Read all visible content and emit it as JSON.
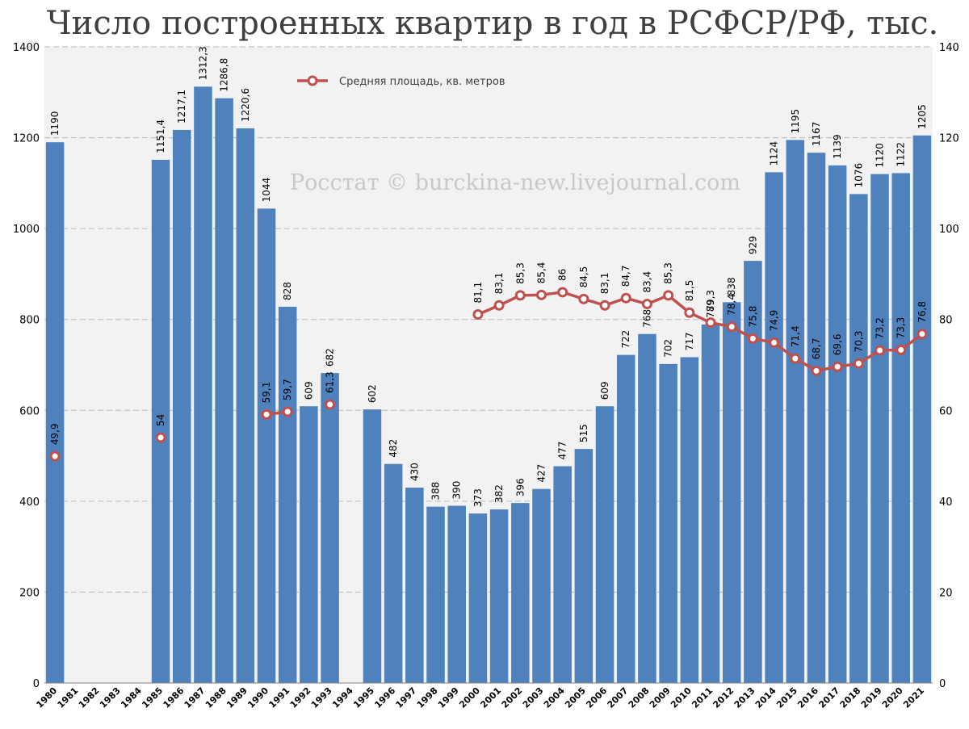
{
  "chart_data": {
    "type": "bar",
    "title": "Число построенных квартир в год в РСФСР/РФ, тыс.",
    "watermark": "Росстат © burckina-new.livejournal.com",
    "categories": [
      "1980",
      "1981",
      "1982",
      "1983",
      "1984",
      "1985",
      "1986",
      "1987",
      "1988",
      "1989",
      "1990",
      "1991",
      "1992",
      "1993",
      "1994",
      "1995",
      "1996",
      "1997",
      "1998",
      "1999",
      "2000",
      "2001",
      "2002",
      "2003",
      "2004",
      "2005",
      "2006",
      "2007",
      "2008",
      "2009",
      "2010",
      "2011",
      "2012",
      "2013",
      "2014",
      "2015",
      "2016",
      "2017",
      "2018",
      "2019",
      "2020",
      "2021"
    ],
    "series": [
      {
        "type": "bar",
        "axis": "left",
        "color": "#4f81bd",
        "values": [
          1190,
          null,
          null,
          null,
          null,
          1151.4,
          1217.1,
          1312.3,
          1286.8,
          1220.6,
          1044,
          828,
          609,
          682,
          null,
          602,
          482,
          430,
          388,
          390,
          373,
          382,
          396,
          427,
          477,
          515,
          609,
          722,
          768,
          702,
          717,
          789,
          838,
          929,
          1124,
          1195,
          1167,
          1139,
          1076,
          1120,
          1122,
          1205
        ],
        "labels": [
          "1190",
          "",
          "",
          "",
          "",
          "1151,4",
          "1217,1",
          "1312,3",
          "1286,8",
          "1220,6",
          "1044",
          "828",
          "609",
          "682",
          "",
          "602",
          "482",
          "430",
          "388",
          "390",
          "373",
          "382",
          "396",
          "427",
          "477",
          "515",
          "609",
          "722",
          "768",
          "702",
          "717",
          "789",
          "838",
          "929",
          "1124",
          "1195",
          "1167",
          "1139",
          "1076",
          "1120",
          "1122",
          "1205"
        ]
      },
      {
        "type": "line",
        "axis": "right",
        "name": "Средняя площадь, кв. метров",
        "color": "#c0504d",
        "values": [
          49.9,
          null,
          null,
          null,
          null,
          54,
          null,
          null,
          null,
          null,
          59.1,
          59.7,
          null,
          61.3,
          null,
          null,
          null,
          null,
          null,
          null,
          81.1,
          83.1,
          85.3,
          85.4,
          86,
          84.5,
          83.1,
          84.7,
          83.4,
          85.3,
          81.5,
          79.3,
          78.4,
          75.8,
          74.9,
          71.4,
          68.7,
          69.6,
          70.3,
          73.2,
          73.3,
          76.8
        ],
        "labels": [
          "49,9",
          "",
          "",
          "",
          "",
          "54",
          "",
          "",
          "",
          "",
          "59,1",
          "59,7",
          "",
          "61,3",
          "",
          "",
          "",
          "",
          "",
          "",
          "81,1",
          "83,1",
          "85,3",
          "85,4",
          "86",
          "84,5",
          "83,1",
          "84,7",
          "83,4",
          "85,3",
          "81,5",
          "79,3",
          "78,4",
          "75,8",
          "74,9",
          "71,4",
          "68,7",
          "69,6",
          "70,3",
          "73,2",
          "73,3",
          "76,8"
        ]
      }
    ],
    "y_left": {
      "min": 0,
      "max": 1400,
      "ticks": [
        "0",
        "200",
        "400",
        "600",
        "800",
        "1000",
        "1200",
        "1400"
      ]
    },
    "y_right": {
      "min": 0,
      "max": 140,
      "ticks": [
        "0",
        "20",
        "40",
        "60",
        "80",
        "100",
        "120",
        "140"
      ]
    },
    "grid": true,
    "legend_position": "top-left",
    "colors": {
      "plot_background": "#f2f2f2",
      "grid": "#b8b8b8",
      "bar": "#4f81bd",
      "line": "#c0504d"
    }
  }
}
